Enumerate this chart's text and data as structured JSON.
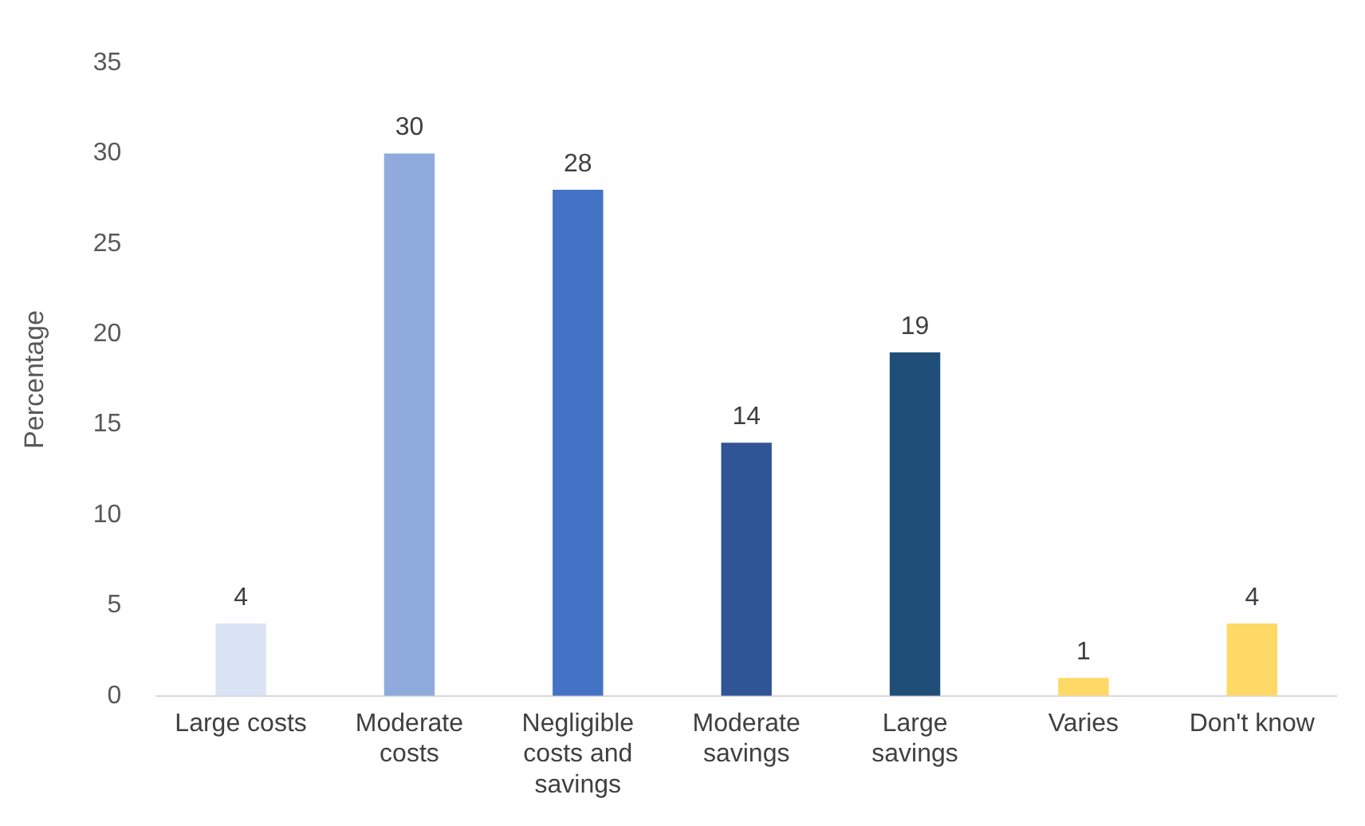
{
  "chart_data": {
    "type": "bar",
    "ylabel": "Percentage",
    "categories": [
      "Large costs",
      "Moderate costs",
      "Negligible costs and savings",
      "Moderate savings",
      "Large savings",
      "Varies",
      "Don't know"
    ],
    "values": [
      4,
      30,
      28,
      14,
      19,
      1,
      4
    ],
    "colors": [
      "#dae3f3",
      "#8faadc",
      "#4472c4",
      "#2f5597",
      "#1f4e79",
      "#ffd966",
      "#ffd966"
    ],
    "ylim": [
      0,
      35
    ],
    "yticks": [
      0,
      5,
      10,
      15,
      20,
      25,
      30,
      35
    ],
    "grid": false,
    "legend": false,
    "data_labels": true
  }
}
